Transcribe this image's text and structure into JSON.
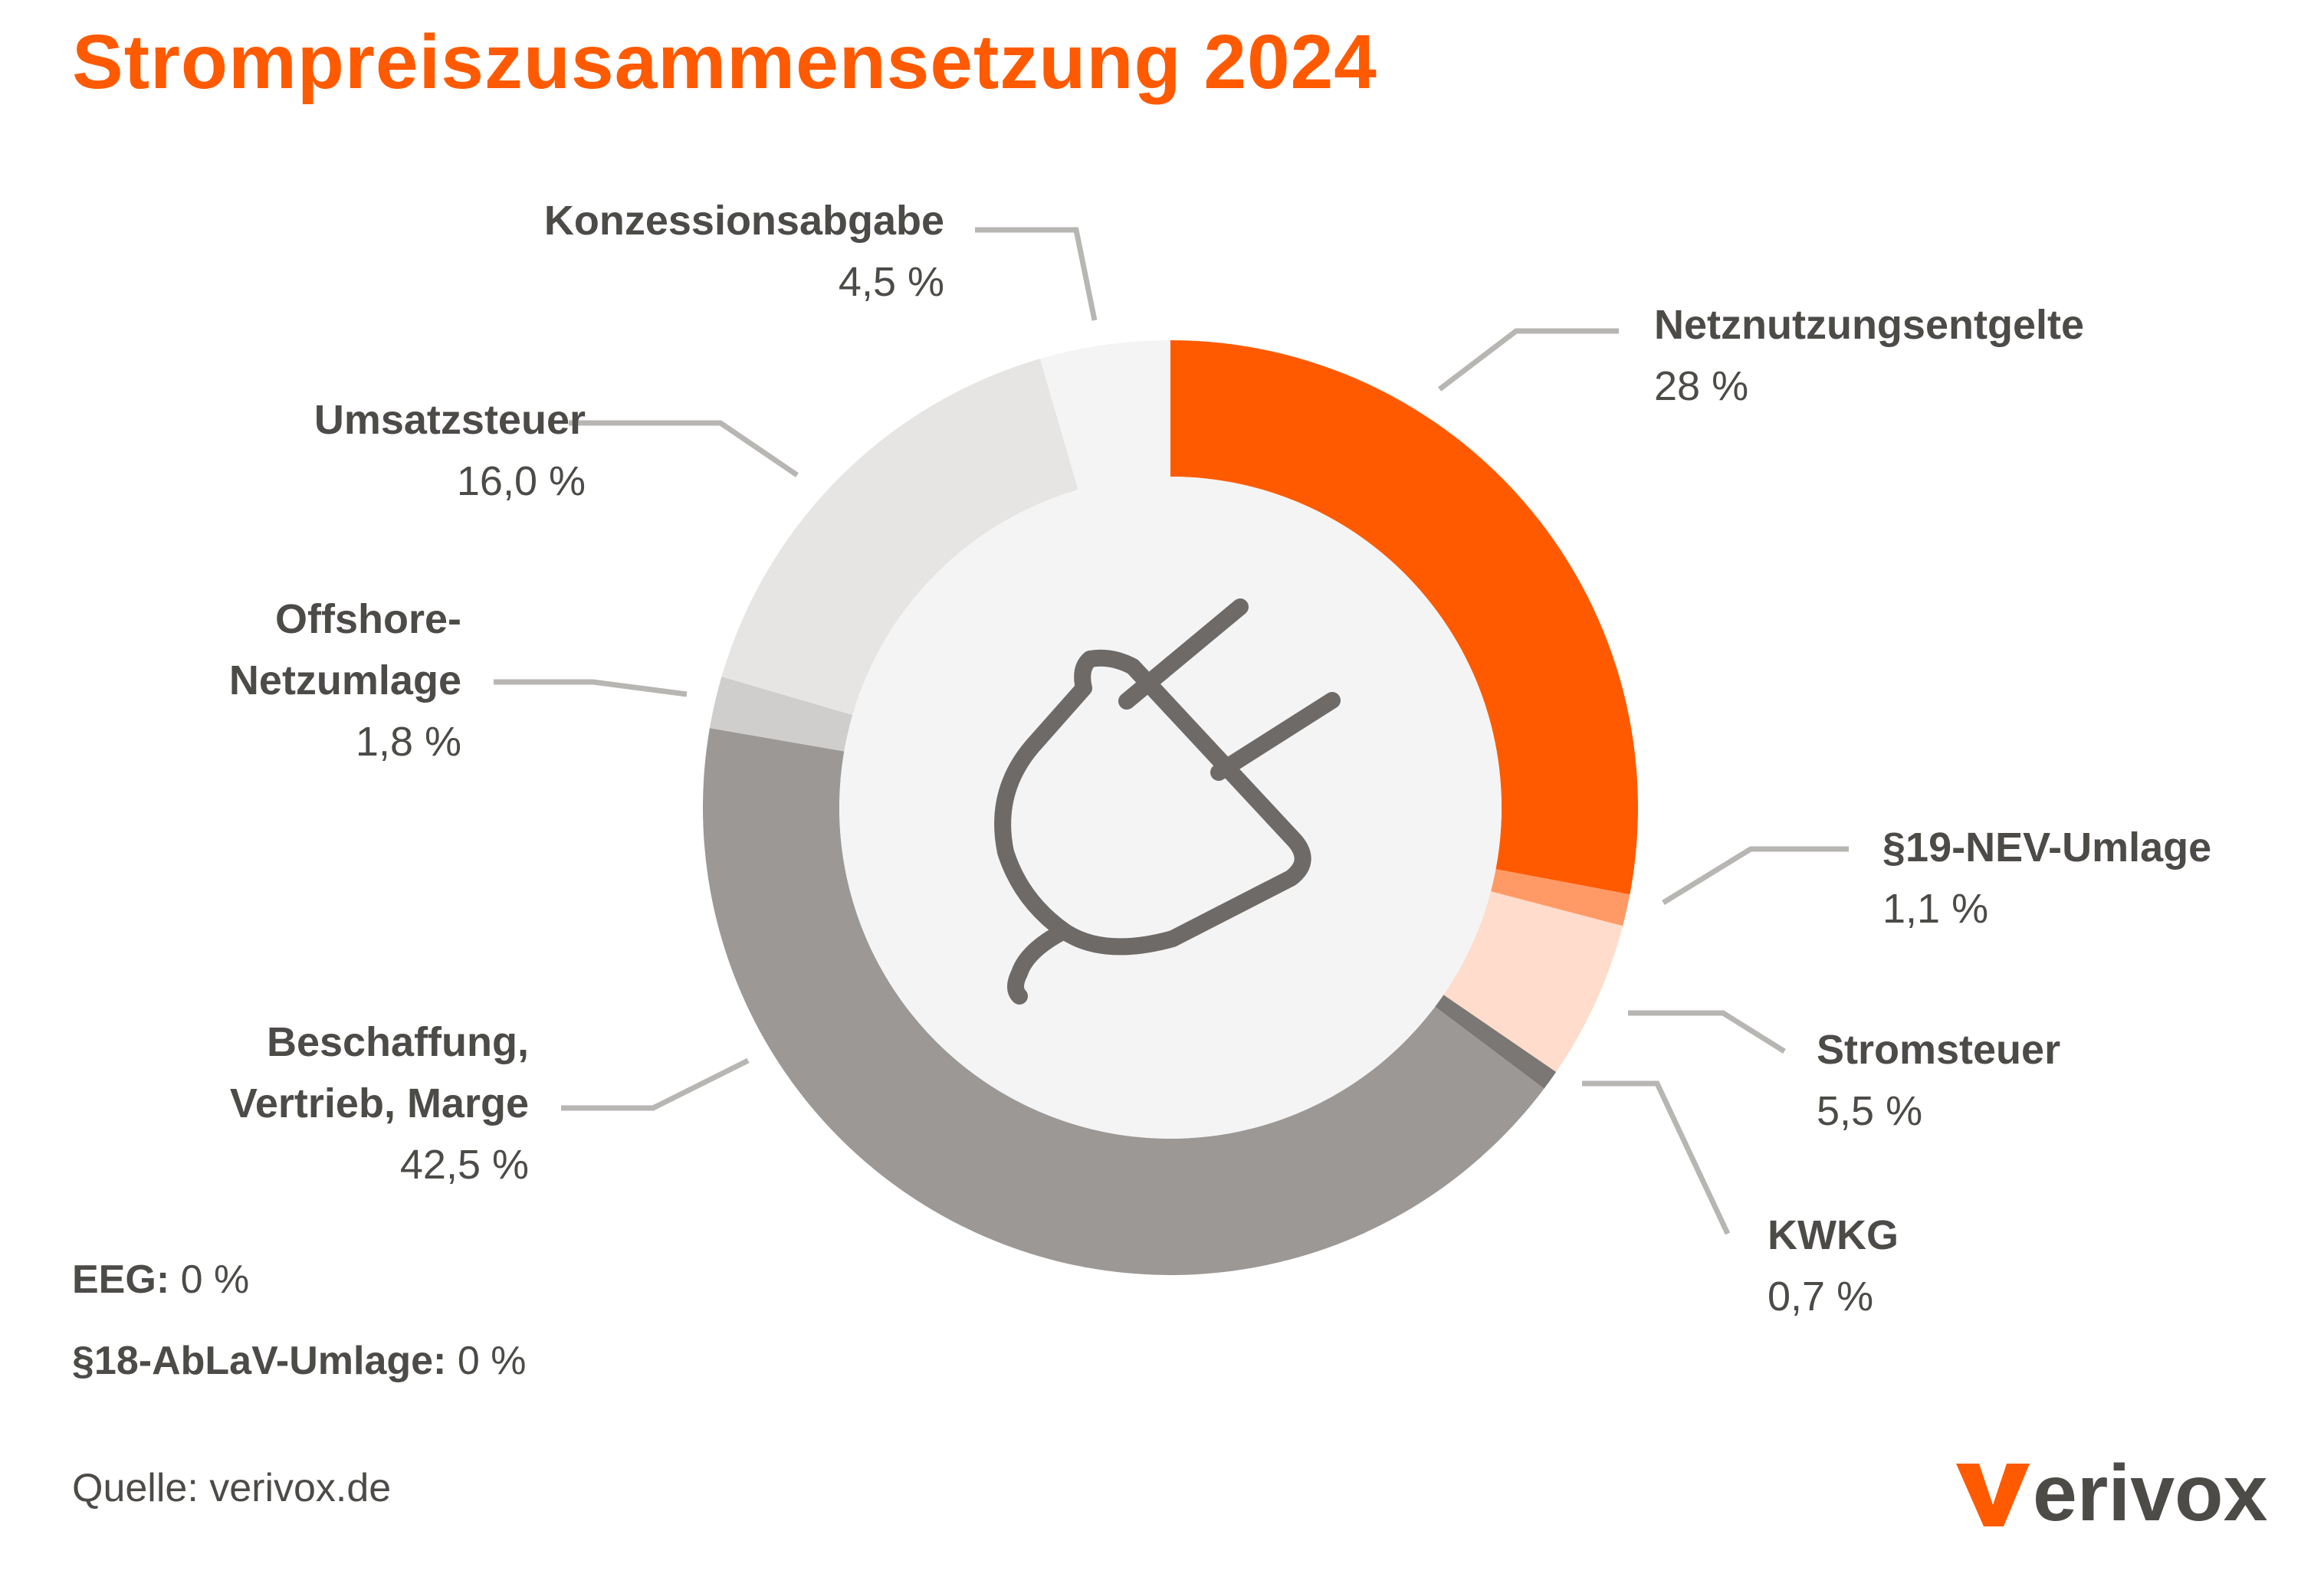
{
  "title": "Strompreiszusammensetzung 2024",
  "chart_data": {
    "type": "pie",
    "variant": "donut",
    "title": "Strompreiszusammensetzung 2024",
    "unit": "%",
    "segments": [
      {
        "name": "Netznutzungsentgelte",
        "value": 28.0,
        "display": "28 %",
        "color": "#ff5a00"
      },
      {
        "name": "§19-NEV-Umlage",
        "value": 1.1,
        "display": "1,1 %",
        "color": "#ff9a66"
      },
      {
        "name": "Stromsteuer",
        "value": 5.5,
        "display": "5,5 %",
        "color": "#ffdccb"
      },
      {
        "name": "KWKG",
        "value": 0.7,
        "display": "0,7 %",
        "color": "#7a7774"
      },
      {
        "name": "Beschaffung, Vertrieb, Marge",
        "value": 42.5,
        "display": "42,5 %",
        "color": "#9c9895"
      },
      {
        "name": "Offshore-Netzumlage",
        "value": 1.8,
        "display": "1,8 %",
        "color": "#cfcecc"
      },
      {
        "name": "Umsatzsteuer",
        "value": 16.0,
        "display": "16,0 %",
        "color": "#e6e5e3"
      },
      {
        "name": "Konzessionsabgabe",
        "value": 4.5,
        "display": "4,5 %",
        "color": "#f4f4f4"
      }
    ],
    "zero_items": [
      {
        "name": "EEG:",
        "display": "0 %"
      },
      {
        "name": "§18-AbLaV-Umlage:",
        "display": "0 %"
      }
    ]
  },
  "labels": {
    "netz_name": "Netznutzungsentgelte",
    "nev_name": "§19-NEV-Umlage",
    "strom_name": "Stromsteuer",
    "kwkg_name": "KWKG",
    "besch_name_1": "Beschaffung,",
    "besch_name_2": "Vertrieb, Marge",
    "offshore_name_1": "Offshore-",
    "offshore_name_2": "Netzumlage",
    "ust_name": "Umsatzsteuer",
    "konz_name": "Konzessionsabgabe"
  },
  "source": "Quelle: verivox.de",
  "logo_text": "verivox",
  "colors": {
    "accent": "#ff5a00",
    "text": "#4d4b48",
    "leader": "#b8b6b3",
    "center": "#f4f4f4",
    "icon": "#6e6a67"
  }
}
